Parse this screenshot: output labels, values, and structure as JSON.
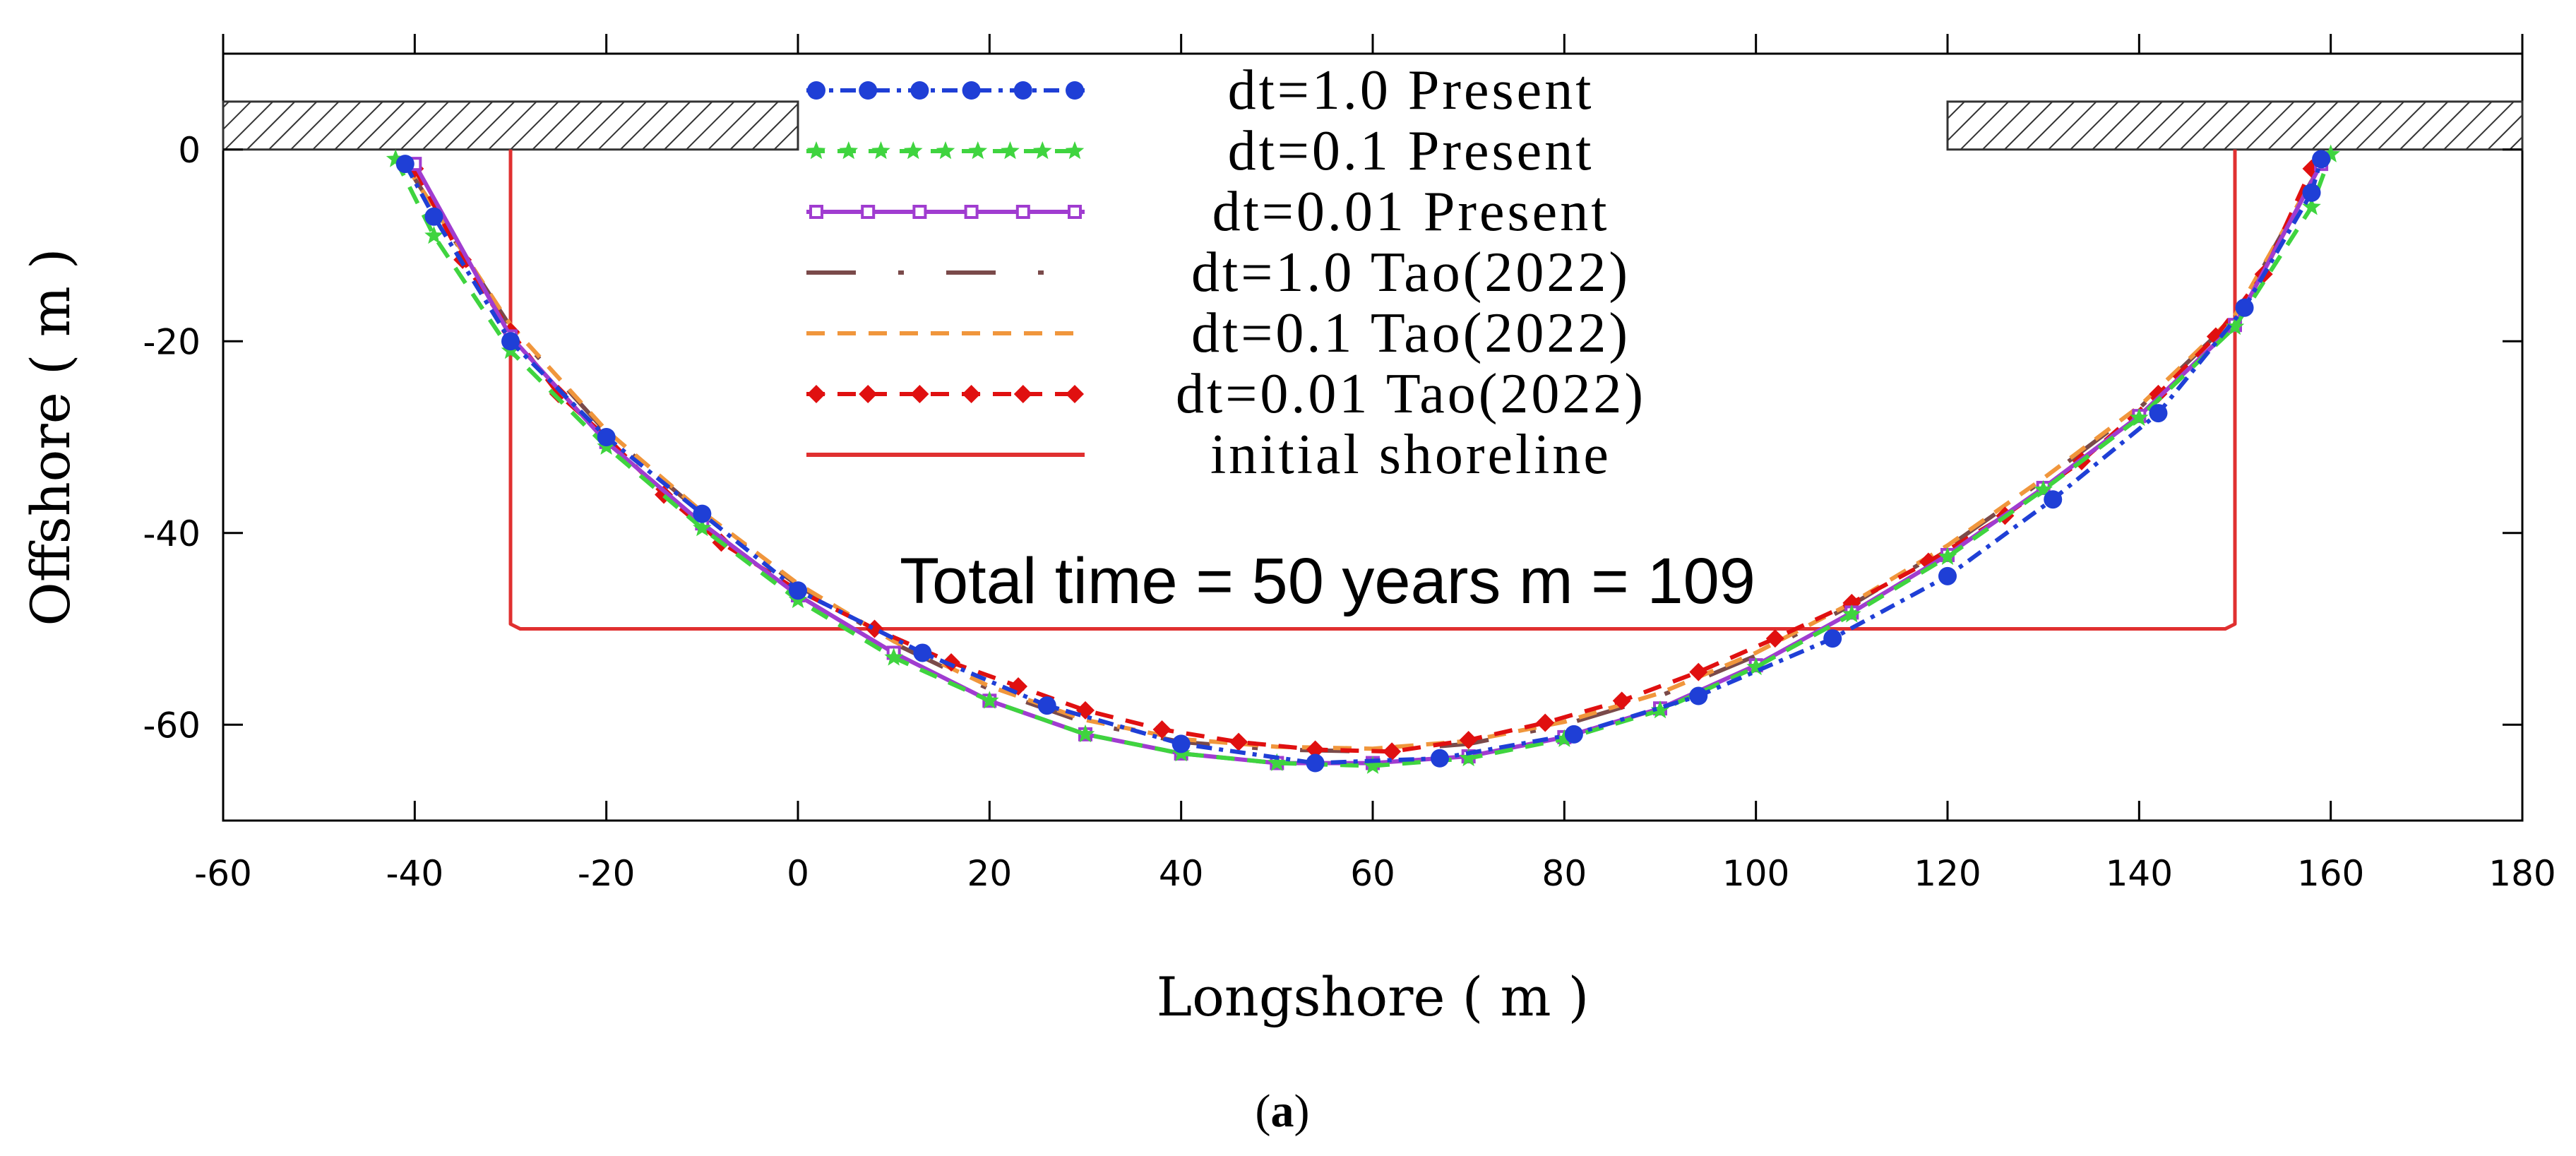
{
  "chart_data": {
    "type": "line",
    "title": "",
    "xlabel": "Longshore ( m )",
    "ylabel": "Offshore ( m )",
    "xlim": [
      -60,
      180
    ],
    "ylim": [
      -70,
      10
    ],
    "xticks": [
      -60,
      -40,
      -20,
      0,
      20,
      40,
      60,
      80,
      100,
      120,
      140,
      160,
      180
    ],
    "yticks": [
      -60,
      -40,
      -20,
      0
    ],
    "xtick_labels": [
      "-60",
      "-40",
      "-20",
      "0",
      "20",
      "40",
      "60",
      "80",
      "100",
      "120",
      "140",
      "160",
      "180"
    ],
    "ytick_labels": [
      "-60",
      "-40",
      "-20",
      "0"
    ],
    "grid": false,
    "legend_position": "top-center",
    "annotation": "Total time = 50 years m = 109",
    "caption": "(a)",
    "caption_letter": "a",
    "structures": [
      {
        "name": "left groin",
        "x": [
          -60,
          0
        ],
        "y": [
          0,
          5
        ]
      },
      {
        "name": "right groin",
        "x": [
          120,
          180
        ],
        "y": [
          0,
          5
        ]
      }
    ],
    "series": [
      {
        "name": "dt=1.0 Present",
        "color": "#1f3fd6",
        "style": "dashdot",
        "marker": "circle",
        "x": [
          -41,
          -38,
          -30,
          -20,
          -10,
          0,
          13,
          26,
          40,
          54,
          67,
          81,
          94,
          108,
          120,
          131,
          142,
          151,
          158,
          159
        ],
        "y": [
          -1.5,
          -7,
          -20,
          -30,
          -38,
          -46,
          -52.5,
          -58,
          -62,
          -64,
          -63.5,
          -61,
          -57,
          -51,
          -44.5,
          -36.5,
          -27.5,
          -16.5,
          -4.5,
          -1
        ]
      },
      {
        "name": "dt=0.1 Present",
        "color": "#3fd43f",
        "style": "dashed",
        "marker": "star",
        "x": [
          -42,
          -38,
          -30,
          -20,
          -10,
          0,
          10,
          20,
          30,
          40,
          50,
          60,
          70,
          80,
          90,
          100,
          110,
          120,
          130,
          140,
          150,
          158,
          160
        ],
        "y": [
          -1,
          -9,
          -21,
          -31,
          -39.5,
          -47,
          -53,
          -57.5,
          -61,
          -63,
          -64,
          -64.3,
          -63.5,
          -61.5,
          -58.5,
          -54,
          -48.5,
          -42.5,
          -35.5,
          -28,
          -18.5,
          -6,
          -0.5
        ]
      },
      {
        "name": "dt=0.01 Present",
        "color": "#a03cd0",
        "style": "solid",
        "marker": "square",
        "x": [
          -40,
          -30,
          -20,
          -10,
          0,
          10,
          20,
          30,
          40,
          50,
          60,
          70,
          80,
          90,
          100,
          110,
          120,
          130,
          140,
          150,
          159
        ],
        "y": [
          -1.5,
          -19.5,
          -30.5,
          -39,
          -46.5,
          -52.5,
          -57.5,
          -61,
          -63,
          -64,
          -64,
          -63.3,
          -61.3,
          -58.3,
          -53.8,
          -48.3,
          -42.3,
          -35.3,
          -27.8,
          -18.3,
          -1.5
        ]
      },
      {
        "name": "dt=1.0 Tao(2022)",
        "color": "#7a4a4a",
        "style": "longdashdot",
        "marker": "none",
        "x": [
          -41,
          -30,
          -20,
          -10,
          0,
          10,
          20,
          30,
          40,
          50,
          60,
          70,
          80,
          90,
          100,
          110,
          120,
          130,
          140,
          150,
          159
        ],
        "y": [
          -1.5,
          -18.5,
          -29.5,
          -38,
          -45.5,
          -51.5,
          -56.3,
          -59.8,
          -61.8,
          -62.6,
          -62.8,
          -62,
          -60,
          -57,
          -52.8,
          -47.5,
          -41.5,
          -34.5,
          -27,
          -17.5,
          -1.5
        ]
      },
      {
        "name": "dt=0.1 Tao(2022)",
        "color": "#f0963c",
        "style": "dashed",
        "marker": "none",
        "x": [
          -41,
          -30,
          -20,
          -10,
          0,
          10,
          20,
          30,
          40,
          50,
          60,
          70,
          80,
          90,
          100,
          110,
          120,
          130,
          140,
          150,
          159
        ],
        "y": [
          -1.5,
          -18.3,
          -29.3,
          -37.8,
          -45.3,
          -51.3,
          -56,
          -59.5,
          -61.5,
          -62.3,
          -62.5,
          -61.7,
          -59.7,
          -56.7,
          -52.5,
          -47.3,
          -41.3,
          -34.3,
          -26.8,
          -17.3,
          -1.5
        ]
      },
      {
        "name": "dt=0.01 Tao(2022)",
        "color": "#e01010",
        "style": "dashed",
        "marker": "diamond",
        "x": [
          -40,
          -35,
          -30,
          -25,
          -20,
          -14,
          -8,
          0,
          8,
          16,
          23,
          30,
          38,
          46,
          54,
          62,
          70,
          78,
          86,
          94,
          102,
          110,
          118,
          126,
          134,
          142,
          148,
          153,
          158
        ],
        "y": [
          -2,
          -11.5,
          -19,
          -25.5,
          -30,
          -36,
          -41,
          -46,
          -50,
          -53.5,
          -56,
          -58.5,
          -60.5,
          -61.8,
          -62.6,
          -62.8,
          -61.6,
          -59.8,
          -57.5,
          -54.5,
          -51,
          -47.3,
          -43,
          -38.2,
          -32.5,
          -25.5,
          -19.5,
          -13,
          -2
        ]
      },
      {
        "name": "initial shoreline",
        "color": "#e03030",
        "style": "solid",
        "marker": "none",
        "x": [
          -30,
          -30,
          -29,
          149,
          150,
          150
        ],
        "y": [
          0,
          -49.5,
          -50,
          -50,
          -49.5,
          0
        ]
      }
    ]
  }
}
